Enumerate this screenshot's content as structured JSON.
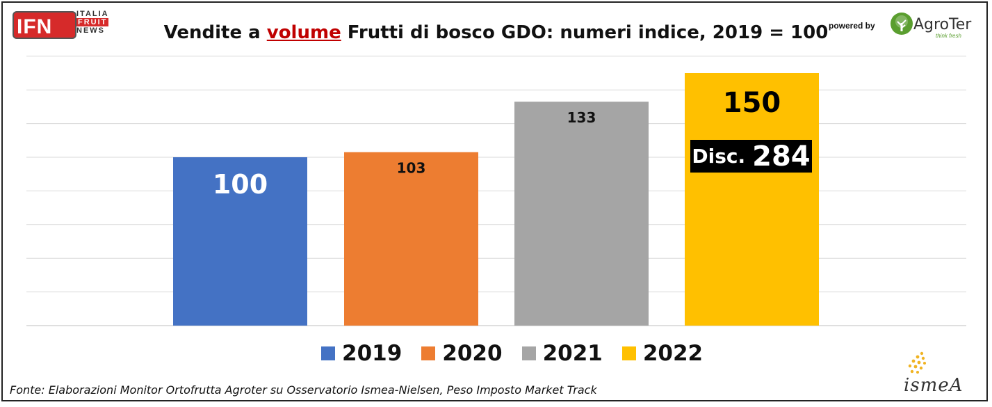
{
  "header": {
    "logo": {
      "main": "IFN",
      "line1": "ITALIA",
      "line2": "FRUIT",
      "line3": "NEWS"
    },
    "title_pre": "Vendite a ",
    "title_highlight": "volume",
    "title_post": " Frutti di bosco GDO: numeri indice, 2019 = 100",
    "powered_by": "powered by",
    "partner_name": "AgroTer",
    "partner_tagline": "think fresh"
  },
  "chart_data": {
    "type": "bar",
    "title": "Vendite a volume Frutti di bosco GDO: numeri indice, 2019 = 100",
    "categories": [
      "2019",
      "2020",
      "2021",
      "2022"
    ],
    "values": [
      100,
      103,
      133,
      150
    ],
    "data_labels": [
      "100",
      "103",
      "133",
      "150"
    ],
    "colors": [
      "#4472c4",
      "#ed7d31",
      "#a5a5a5",
      "#ffc000"
    ],
    "ylim": [
      0,
      160
    ],
    "grid": true,
    "legend": "bottom",
    "annotation": {
      "label": "Disc.",
      "value": "284"
    }
  },
  "legend": [
    {
      "label": "2019",
      "color": "#4472c4"
    },
    {
      "label": "2020",
      "color": "#ed7d31"
    },
    {
      "label": "2021",
      "color": "#a5a5a5"
    },
    {
      "label": "2022",
      "color": "#ffc000"
    }
  ],
  "footer": {
    "source": "Fonte: Elaborazioni Monitor Ortofrutta Agroter su Osservatorio Ismea-Nielsen, Peso Imposto Market Track",
    "ismea_logo": "ismeA"
  }
}
